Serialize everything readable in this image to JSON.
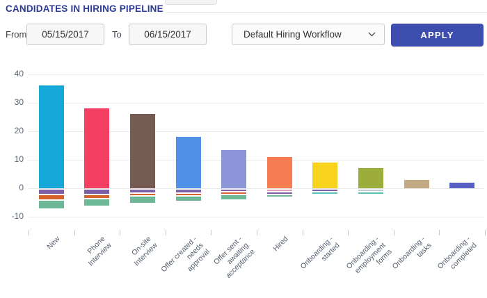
{
  "header": {
    "title": "CANDIDATES IN HIRING PIPELINE"
  },
  "filters": {
    "from_label": "From",
    "from_value": "05/15/2017",
    "to_label": "To",
    "to_value": "06/15/2017",
    "workflow_selected": "Default Hiring Workflow",
    "apply_label": "APPLY"
  },
  "colors": {
    "accent": "#3e4eae",
    "title_text": "#2b3b96",
    "axis_text": "#5a6472",
    "gridline": "#e9e9e9",
    "negative_purple": "#7d5fa6",
    "negative_orange": "#d5622a",
    "negative_green": "#6cb896",
    "negative_pink": "#e2a2b2",
    "negative_teal": "#5cc0b8",
    "negative_grey": "#c7c9d6"
  },
  "chart_data": {
    "type": "bar",
    "stacked": true,
    "title": "CANDIDATES IN HIRING PIPELINE",
    "xlabel": "",
    "ylabel": "",
    "ylim": [
      -10,
      40
    ],
    "yticks": [
      40,
      30,
      20,
      10,
      0,
      -10
    ],
    "grid": true,
    "legend": false,
    "categories": [
      "New",
      "Phone Interview",
      "On-site Interview",
      "Offer created - needs approval",
      "Offer sent - awaiting acceptance",
      "Hired",
      "Onboarding - started",
      "Onboarding - employment forms",
      "Onboarding - tasks",
      "Onboarding - completed"
    ],
    "bars": [
      {
        "label": "New",
        "label_lines": [
          "New"
        ],
        "value": 36,
        "color": "#16a7d9",
        "negatives": [
          {
            "value": 2,
            "color": "#7d5fa6"
          },
          {
            "value": 2,
            "color": "#d5622a"
          },
          {
            "value": 3,
            "color": "#6cb896"
          }
        ]
      },
      {
        "label": "Phone Interview",
        "label_lines": [
          "Phone",
          "Interview"
        ],
        "value": 28,
        "color": "#f43f63",
        "negatives": [
          {
            "value": 2,
            "color": "#7d5fa6"
          },
          {
            "value": 1.5,
            "color": "#d5622a"
          },
          {
            "value": 2.5,
            "color": "#6cb896"
          }
        ]
      },
      {
        "label": "On-site Interview",
        "label_lines": [
          "On-site",
          "Interview"
        ],
        "value": 26,
        "color": "#755b52",
        "negatives": [
          {
            "value": 1.5,
            "color": "#7d5fa6"
          },
          {
            "value": 1,
            "color": "#d5622a"
          },
          {
            "value": 2.5,
            "color": "#6cb896"
          }
        ]
      },
      {
        "label": "Offer created - needs approval",
        "label_lines": [
          "Offer created -",
          "needs",
          "approval"
        ],
        "value": 18,
        "color": "#4f90e8",
        "negatives": [
          {
            "value": 1.5,
            "color": "#7d5fa6"
          },
          {
            "value": 1,
            "color": "#d5622a"
          },
          {
            "value": 2,
            "color": "#6cb896"
          }
        ]
      },
      {
        "label": "Offer sent - awaiting acceptance",
        "label_lines": [
          "Offer sent -",
          "awaiting",
          "acceptance"
        ],
        "value": 13.5,
        "color": "#8d95d9",
        "negatives": [
          {
            "value": 1,
            "color": "#7d5fa6"
          },
          {
            "value": 1,
            "color": "#d5622a"
          },
          {
            "value": 2,
            "color": "#6cb896"
          }
        ]
      },
      {
        "label": "Hired",
        "label_lines": [
          "Hired"
        ],
        "value": 11,
        "color": "#f57d51",
        "negatives": [
          {
            "value": 1,
            "color": "#e2a2b2"
          },
          {
            "value": 0.5,
            "color": "#7d5fa6"
          },
          {
            "value": 1,
            "color": "#6cb896"
          }
        ]
      },
      {
        "label": "Onboarding - started",
        "label_lines": [
          "Onboarding -",
          "started"
        ],
        "value": 9,
        "color": "#f7d31e",
        "negatives": [
          {
            "value": 0.5,
            "color": "#7d5fa6"
          },
          {
            "value": 0.5,
            "color": "#5cc0b8"
          }
        ]
      },
      {
        "label": "Onboarding - employment forms",
        "label_lines": [
          "Onboarding -",
          "employment",
          "forms"
        ],
        "value": 7,
        "color": "#9cad3b",
        "negatives": [
          {
            "value": 0.4,
            "color": "#c7c9d6"
          },
          {
            "value": 0.6,
            "color": "#5cc0b8"
          }
        ]
      },
      {
        "label": "Onboarding - tasks",
        "label_lines": [
          "Onboarding -",
          "tasks"
        ],
        "value": 3,
        "color": "#c3a884",
        "negatives": []
      },
      {
        "label": "Onboarding - completed",
        "label_lines": [
          "Onboarding -",
          "completed"
        ],
        "value": 2,
        "color": "#5a61c6",
        "negatives": []
      }
    ]
  }
}
